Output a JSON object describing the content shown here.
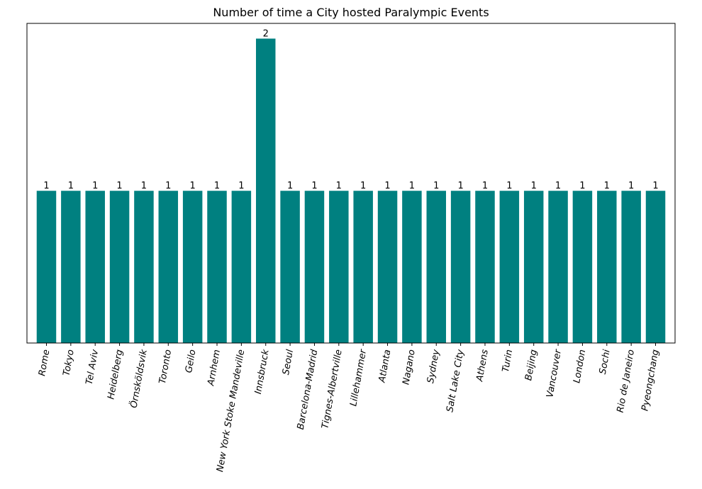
{
  "chart_data": {
    "type": "bar",
    "title": "Number of time a City hosted Paralympic Events",
    "xlabel": "",
    "ylabel": "",
    "categories": [
      "Rome",
      "Tokyo",
      "Tel Aviv",
      "Heidelberg",
      "Örnsköldsvik",
      "Toronto",
      "Geilo",
      "Arnhem",
      "New York Stoke Mandeville",
      "Innsbruck",
      "Seoul",
      "Barcelona-Madrid",
      "Tignes-Albertville",
      "Lillehammer",
      "Atlanta",
      "Nagano",
      "Sydney",
      "Salt Lake City",
      "Athens",
      "Turin",
      "Beijing",
      "Vancouver",
      "London",
      "Sochi",
      "Rio de Janeiro",
      "Pyeongchang"
    ],
    "values": [
      1,
      1,
      1,
      1,
      1,
      1,
      1,
      1,
      1,
      2,
      1,
      1,
      1,
      1,
      1,
      1,
      1,
      1,
      1,
      1,
      1,
      1,
      1,
      1,
      1,
      1
    ],
    "value_labels": [
      "1",
      "1",
      "1",
      "1",
      "1",
      "1",
      "1",
      "1",
      "1",
      "2",
      "1",
      "1",
      "1",
      "1",
      "1",
      "1",
      "1",
      "1",
      "1",
      "1",
      "1",
      "1",
      "1",
      "1",
      "1",
      "1"
    ],
    "ylim": [
      0,
      2.1
    ],
    "y_axis_visible": false,
    "x_tick_rotation_deg": 80,
    "grid": false,
    "colors": {
      "bar": "#008080",
      "axes": "#000000"
    }
  }
}
